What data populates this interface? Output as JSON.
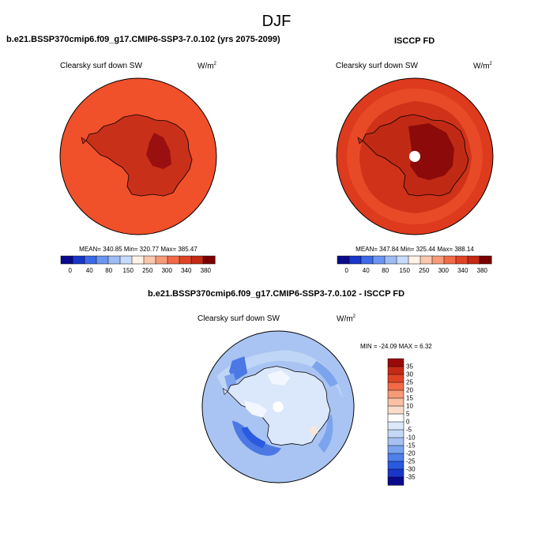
{
  "main_title": "DJF",
  "panels": [
    {
      "title": "b.e21.BSSP370cmip6.f09_g17.CMIP6-SSP3-7.0.102 (yrs 2075-2099)",
      "variable": "Clearsky surf down SW",
      "units_base": "W/m",
      "units_exp": "2",
      "stats": "MEAN= 340.85  Min= 320.77  Max= 385.47",
      "ocean_color": "#f0502a",
      "ice_color": "#c9301a",
      "plateau_color": "#9a1010",
      "has_pole_gap": false
    },
    {
      "title": "ISCCP FD",
      "variable": "Clearsky surf down SW",
      "units_base": "W/m",
      "units_exp": "2",
      "stats": "MEAN= 347.84  Min= 325.44  Max= 388.14",
      "ocean_color": "#de3a1d",
      "ice_color": "#c02a14",
      "plateau_color": "#8c0a0a",
      "has_pole_gap": true
    }
  ],
  "colorbar": {
    "labels": [
      "0",
      "40",
      "80",
      "150",
      "250",
      "300",
      "340",
      "380"
    ],
    "colors": [
      "#0a0a8c",
      "#1836c8",
      "#3d6ae6",
      "#6c96f0",
      "#9ebdf5",
      "#c8dbfa",
      "#fff2e6",
      "#f9c8ae",
      "#f69a78",
      "#f26a48",
      "#e04426",
      "#c42a14",
      "#7a0000"
    ]
  },
  "diff_panel": {
    "title": "b.e21.BSSP370cmip6.f09_g17.CMIP6-SSP3-7.0.102 - ISCCP FD",
    "variable": "Clearsky surf down SW",
    "units_base": "W/m",
    "units_exp": "2",
    "stats": "MIN = -24.09 MAX =   6.32",
    "colorbar": {
      "labels": [
        "35",
        "30",
        "25",
        "20",
        "15",
        "10",
        "5",
        "0",
        "-5",
        "-10",
        "-15",
        "-20",
        "-25",
        "-30",
        "-35"
      ],
      "colors": [
        "#9a0a0a",
        "#c42a14",
        "#e04426",
        "#f26a48",
        "#f69a78",
        "#f9c0a4",
        "#fbdcca",
        "#ffffff",
        "#dce8fa",
        "#c4d8f6",
        "#a6c2f2",
        "#7ca4ee",
        "#4f80ea",
        "#2a5ae0",
        "#1a36c8",
        "#0a0a8c"
      ]
    }
  }
}
